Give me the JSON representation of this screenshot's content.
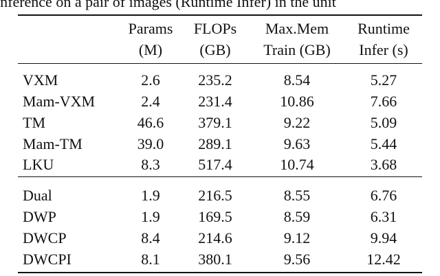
{
  "caption": "inference on a pair of images (Runtime Infer) in the unit",
  "table": {
    "header": [
      [
        "Params",
        "(M)"
      ],
      [
        "FLOPs",
        "(GB)"
      ],
      [
        "Max.Mem",
        "Train (GB)"
      ],
      [
        "Runtime",
        "Infer (s)"
      ]
    ],
    "groups": [
      [
        [
          "VXM",
          "2.6",
          "235.2",
          "8.54",
          "5.27"
        ],
        [
          "Mam-VXM",
          "2.4",
          "231.4",
          "10.86",
          "7.66"
        ],
        [
          "TM",
          "46.6",
          "379.1",
          "9.22",
          "5.09"
        ],
        [
          "Mam-TM",
          "39.0",
          "289.1",
          "9.63",
          "5.44"
        ],
        [
          "LKU",
          "8.3",
          "517.4",
          "10.74",
          "3.68"
        ]
      ],
      [
        [
          "Dual",
          "1.9",
          "216.5",
          "8.55",
          "6.76"
        ],
        [
          "DWP",
          "1.9",
          "169.5",
          "8.59",
          "6.31"
        ],
        [
          "DWCP",
          "8.4",
          "214.6",
          "9.12",
          "9.94"
        ],
        [
          "DWCPI",
          "8.1",
          "380.1",
          "9.56",
          "12.42"
        ]
      ]
    ]
  }
}
